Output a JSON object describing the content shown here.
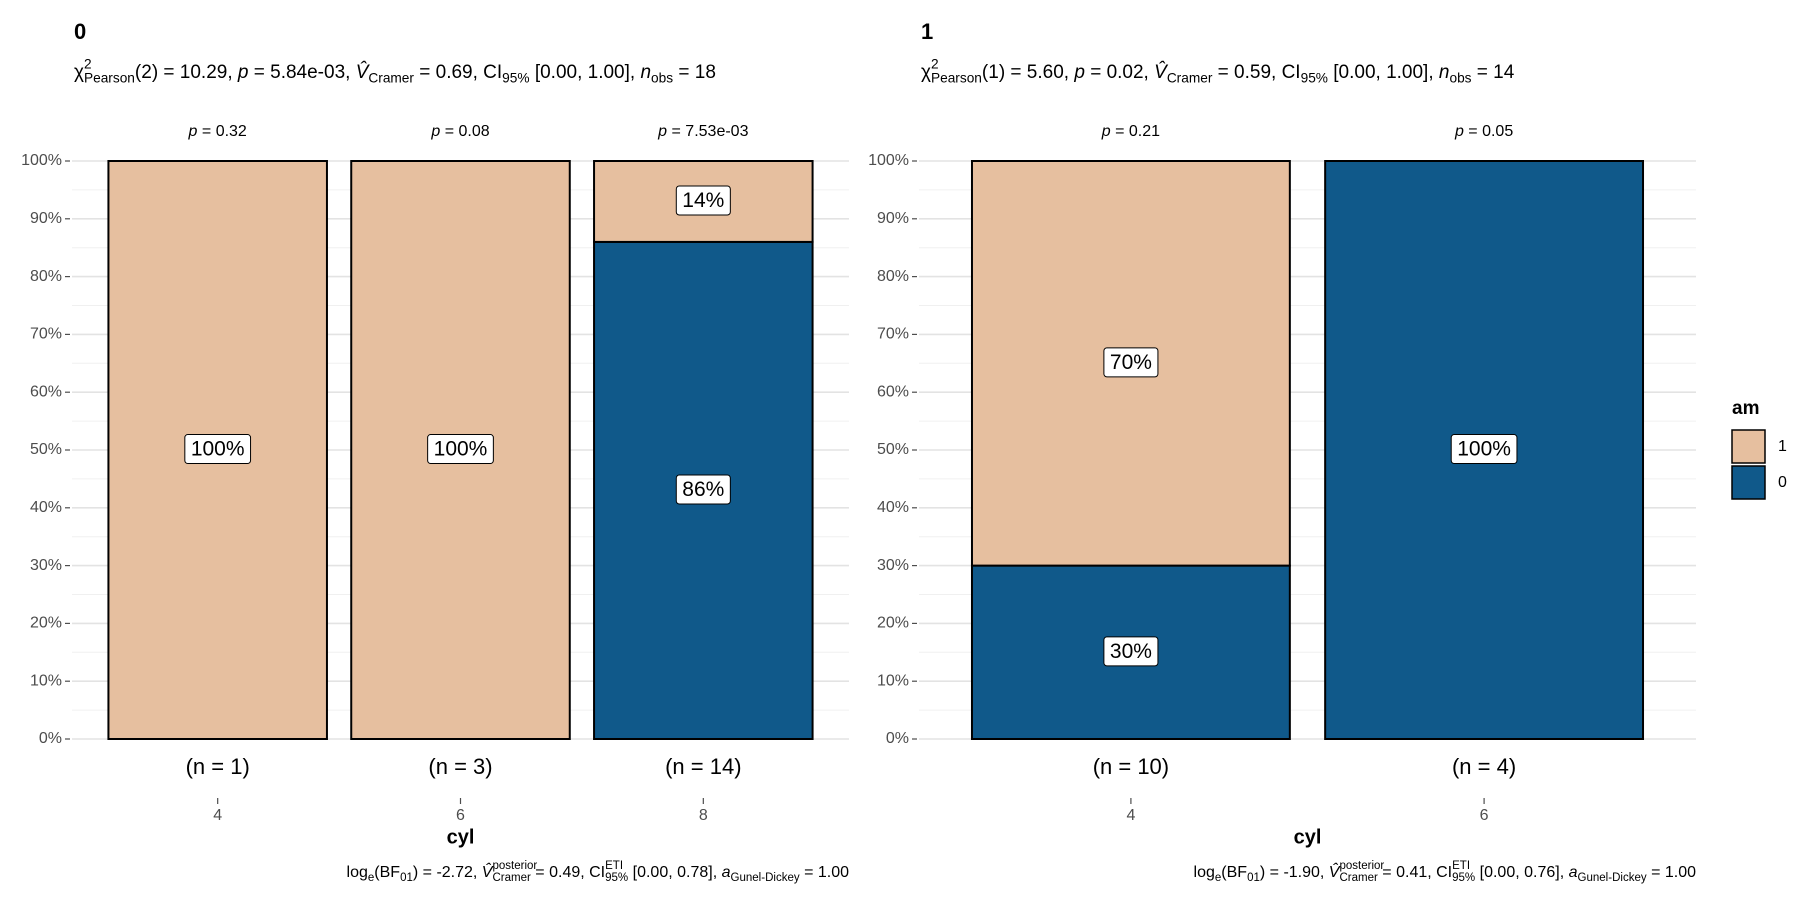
{
  "chart_data": [
    {
      "type": "bar",
      "title": "0",
      "subtitle": [
        {
          "text": "χ"
        },
        {
          "text": "2",
          "style": "sup"
        },
        {
          "text": "Pearson",
          "style": "sub"
        },
        {
          "text": "(2) = 10.29, "
        },
        {
          "text": "p",
          "style": "italic"
        },
        {
          "text": " = 5.84e-03, "
        },
        {
          "text": "V̂",
          "style": "italic"
        },
        {
          "text": "Cramer",
          "style": "sub"
        },
        {
          "text": " = 0.69, CI"
        },
        {
          "text": "95%",
          "style": "sub"
        },
        {
          "text": " [0.00, 1.00], "
        },
        {
          "text": "n",
          "style": "italic"
        },
        {
          "text": "obs",
          "style": "sub"
        },
        {
          "text": " = 18"
        }
      ],
      "caption": [
        {
          "text": "log"
        },
        {
          "text": "e",
          "style": "sub"
        },
        {
          "text": "(BF"
        },
        {
          "text": "01",
          "style": "sub"
        },
        {
          "text": ") = -2.72, "
        },
        {
          "text": "V̂",
          "style": "italic"
        },
        {
          "text": "posterior",
          "style": "sup"
        },
        {
          "text": "Cramer",
          "style": "sub"
        },
        {
          "text": " = 0.49, CI"
        },
        {
          "text": "ETI",
          "style": "sup"
        },
        {
          "text": "95%",
          "style": "sub"
        },
        {
          "text": " [0.00, 0.78], "
        },
        {
          "text": "a",
          "style": "italic"
        },
        {
          "text": "Gunel-Dickey",
          "style": "sub"
        },
        {
          "text": " = 1.00"
        }
      ],
      "categories": [
        "4",
        "6",
        "8"
      ],
      "category_counts": [
        "(n = 1)",
        "(n = 3)",
        "(n = 14)"
      ],
      "p_labels": [
        [
          {
            "text": "p",
            "style": "italic"
          },
          {
            "text": " = 0.32"
          }
        ],
        [
          {
            "text": "p",
            "style": "italic"
          },
          {
            "text": " = 0.08"
          }
        ],
        [
          {
            "text": "p",
            "style": "italic"
          },
          {
            "text": " = 7.53e-03"
          }
        ]
      ],
      "series": [
        {
          "name": "1",
          "color": "#e6bf9f",
          "values": [
            100,
            100,
            14
          ],
          "value_labels": [
            "100%",
            "100%",
            "14%"
          ]
        },
        {
          "name": "0",
          "color": "#10598a",
          "values": [
            0,
            0,
            86
          ],
          "value_labels": [
            null,
            null,
            "86%"
          ]
        }
      ],
      "x_label": "cyl",
      "ylim": [
        0,
        100
      ],
      "yticks": [
        {
          "value": 0,
          "label": "0%"
        },
        {
          "value": 10,
          "label": "10%"
        },
        {
          "value": 20,
          "label": "20%"
        },
        {
          "value": 30,
          "label": "30%"
        },
        {
          "value": 40,
          "label": "40%"
        },
        {
          "value": 50,
          "label": "50%"
        },
        {
          "value": 60,
          "label": "60%"
        },
        {
          "value": 70,
          "label": "70%"
        },
        {
          "value": 80,
          "label": "80%"
        },
        {
          "value": 90,
          "label": "90%"
        },
        {
          "value": 100,
          "label": "100%"
        }
      ],
      "grid": true
    },
    {
      "type": "bar",
      "title": "1",
      "subtitle": [
        {
          "text": "χ"
        },
        {
          "text": "2",
          "style": "sup"
        },
        {
          "text": "Pearson",
          "style": "sub"
        },
        {
          "text": "(1) = 5.60, "
        },
        {
          "text": "p",
          "style": "italic"
        },
        {
          "text": " = 0.02, "
        },
        {
          "text": "V̂",
          "style": "italic"
        },
        {
          "text": "Cramer",
          "style": "sub"
        },
        {
          "text": " = 0.59, CI"
        },
        {
          "text": "95%",
          "style": "sub"
        },
        {
          "text": " [0.00, 1.00], "
        },
        {
          "text": "n",
          "style": "italic"
        },
        {
          "text": "obs",
          "style": "sub"
        },
        {
          "text": " = 14"
        }
      ],
      "caption": [
        {
          "text": "log"
        },
        {
          "text": "e",
          "style": "sub"
        },
        {
          "text": "(BF"
        },
        {
          "text": "01",
          "style": "sub"
        },
        {
          "text": ") = -1.90, "
        },
        {
          "text": "V̂",
          "style": "italic"
        },
        {
          "text": "posterior",
          "style": "sup"
        },
        {
          "text": "Cramer",
          "style": "sub"
        },
        {
          "text": " = 0.41, CI"
        },
        {
          "text": "ETI",
          "style": "sup"
        },
        {
          "text": "95%",
          "style": "sub"
        },
        {
          "text": " [0.00, 0.76], "
        },
        {
          "text": "a",
          "style": "italic"
        },
        {
          "text": "Gunel-Dickey",
          "style": "sub"
        },
        {
          "text": " = 1.00"
        }
      ],
      "categories": [
        "4",
        "6"
      ],
      "category_counts": [
        "(n = 10)",
        "(n = 4)"
      ],
      "p_labels": [
        [
          {
            "text": "p",
            "style": "italic"
          },
          {
            "text": " = 0.21"
          }
        ],
        [
          {
            "text": "p",
            "style": "italic"
          },
          {
            "text": " = 0.05"
          }
        ]
      ],
      "series": [
        {
          "name": "1",
          "color": "#e6bf9f",
          "values": [
            70,
            0
          ],
          "value_labels": [
            "70%",
            null
          ]
        },
        {
          "name": "0",
          "color": "#10598a",
          "values": [
            30,
            100
          ],
          "value_labels": [
            "30%",
            "100%"
          ]
        }
      ],
      "x_label": "cyl",
      "ylim": [
        0,
        100
      ],
      "yticks": [
        {
          "value": 0,
          "label": "0%"
        },
        {
          "value": 10,
          "label": "10%"
        },
        {
          "value": 20,
          "label": "20%"
        },
        {
          "value": 30,
          "label": "30%"
        },
        {
          "value": 40,
          "label": "40%"
        },
        {
          "value": 50,
          "label": "50%"
        },
        {
          "value": 60,
          "label": "60%"
        },
        {
          "value": 70,
          "label": "70%"
        },
        {
          "value": 80,
          "label": "80%"
        },
        {
          "value": 90,
          "label": "90%"
        },
        {
          "value": 100,
          "label": "100%"
        }
      ],
      "grid": true,
      "legend": {
        "title": "am",
        "position": "right"
      }
    }
  ]
}
